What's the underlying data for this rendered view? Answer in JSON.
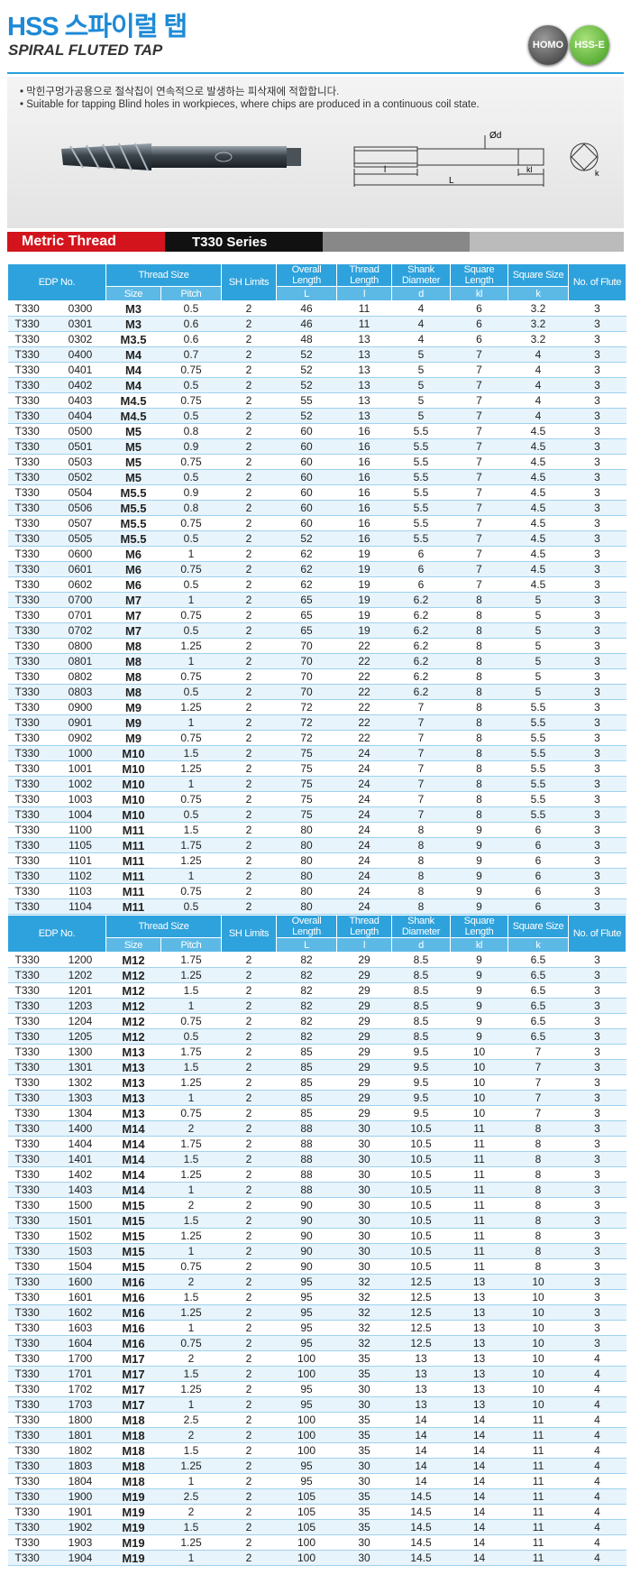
{
  "header": {
    "title": "HSS 스파이럴 탭",
    "subtitle": "SPIRAL FLUTED TAP",
    "badges": [
      "HOMO",
      "HSS-E"
    ]
  },
  "notes": [
    "• 막힌구멍가공용으로 절삭칩이 연속적으로 발생하는 피삭재에 적합합니다.",
    "• Suitable for tapping Blind holes in workpieces, where chips are produced in a continuous coil state."
  ],
  "diagram": {
    "labels": [
      "Ød",
      "l",
      "L",
      "kl",
      "k"
    ]
  },
  "series_bar": {
    "thread": "Metric Thread",
    "series": "T330 Series"
  },
  "columns": {
    "edp": "EDP No.",
    "thread_size": "Thread Size",
    "size": "Size",
    "pitch": "Pitch",
    "sh": "SH Limits",
    "overall": "Overall Length",
    "overall_sym": "L",
    "thread_length": "Thread Length",
    "thread_length_sym": "l",
    "shank": "Shank Diameter",
    "shank_sym": "d",
    "square_length": "Square Length",
    "square_length_sym": "kl",
    "square_size": "Square Size",
    "square_size_sym": "k",
    "flute": "No. of Flute"
  },
  "tables": [
    {
      "rows": [
        [
          "T330",
          "0300",
          "M3",
          "0.5",
          "2",
          "46",
          "11",
          "4",
          "6",
          "3.2",
          "3"
        ],
        [
          "T330",
          "0301",
          "M3",
          "0.6",
          "2",
          "46",
          "11",
          "4",
          "6",
          "3.2",
          "3"
        ],
        [
          "T330",
          "0302",
          "M3.5",
          "0.6",
          "2",
          "48",
          "13",
          "4",
          "6",
          "3.2",
          "3"
        ],
        [
          "T330",
          "0400",
          "M4",
          "0.7",
          "2",
          "52",
          "13",
          "5",
          "7",
          "4",
          "3"
        ],
        [
          "T330",
          "0401",
          "M4",
          "0.75",
          "2",
          "52",
          "13",
          "5",
          "7",
          "4",
          "3"
        ],
        [
          "T330",
          "0402",
          "M4",
          "0.5",
          "2",
          "52",
          "13",
          "5",
          "7",
          "4",
          "3"
        ],
        [
          "T330",
          "0403",
          "M4.5",
          "0.75",
          "2",
          "55",
          "13",
          "5",
          "7",
          "4",
          "3"
        ],
        [
          "T330",
          "0404",
          "M4.5",
          "0.5",
          "2",
          "52",
          "13",
          "5",
          "7",
          "4",
          "3"
        ],
        [
          "T330",
          "0500",
          "M5",
          "0.8",
          "2",
          "60",
          "16",
          "5.5",
          "7",
          "4.5",
          "3"
        ],
        [
          "T330",
          "0501",
          "M5",
          "0.9",
          "2",
          "60",
          "16",
          "5.5",
          "7",
          "4.5",
          "3"
        ],
        [
          "T330",
          "0503",
          "M5",
          "0.75",
          "2",
          "60",
          "16",
          "5.5",
          "7",
          "4.5",
          "3"
        ],
        [
          "T330",
          "0502",
          "M5",
          "0.5",
          "2",
          "60",
          "16",
          "5.5",
          "7",
          "4.5",
          "3"
        ],
        [
          "T330",
          "0504",
          "M5.5",
          "0.9",
          "2",
          "60",
          "16",
          "5.5",
          "7",
          "4.5",
          "3"
        ],
        [
          "T330",
          "0506",
          "M5.5",
          "0.8",
          "2",
          "60",
          "16",
          "5.5",
          "7",
          "4.5",
          "3"
        ],
        [
          "T330",
          "0507",
          "M5.5",
          "0.75",
          "2",
          "60",
          "16",
          "5.5",
          "7",
          "4.5",
          "3"
        ],
        [
          "T330",
          "0505",
          "M5.5",
          "0.5",
          "2",
          "52",
          "16",
          "5.5",
          "7",
          "4.5",
          "3"
        ],
        [
          "T330",
          "0600",
          "M6",
          "1",
          "2",
          "62",
          "19",
          "6",
          "7",
          "4.5",
          "3"
        ],
        [
          "T330",
          "0601",
          "M6",
          "0.75",
          "2",
          "62",
          "19",
          "6",
          "7",
          "4.5",
          "3"
        ],
        [
          "T330",
          "0602",
          "M6",
          "0.5",
          "2",
          "62",
          "19",
          "6",
          "7",
          "4.5",
          "3"
        ],
        [
          "T330",
          "0700",
          "M7",
          "1",
          "2",
          "65",
          "19",
          "6.2",
          "8",
          "5",
          "3"
        ],
        [
          "T330",
          "0701",
          "M7",
          "0.75",
          "2",
          "65",
          "19",
          "6.2",
          "8",
          "5",
          "3"
        ],
        [
          "T330",
          "0702",
          "M7",
          "0.5",
          "2",
          "65",
          "19",
          "6.2",
          "8",
          "5",
          "3"
        ],
        [
          "T330",
          "0800",
          "M8",
          "1.25",
          "2",
          "70",
          "22",
          "6.2",
          "8",
          "5",
          "3"
        ],
        [
          "T330",
          "0801",
          "M8",
          "1",
          "2",
          "70",
          "22",
          "6.2",
          "8",
          "5",
          "3"
        ],
        [
          "T330",
          "0802",
          "M8",
          "0.75",
          "2",
          "70",
          "22",
          "6.2",
          "8",
          "5",
          "3"
        ],
        [
          "T330",
          "0803",
          "M8",
          "0.5",
          "2",
          "70",
          "22",
          "6.2",
          "8",
          "5",
          "3"
        ],
        [
          "T330",
          "0900",
          "M9",
          "1.25",
          "2",
          "72",
          "22",
          "7",
          "8",
          "5.5",
          "3"
        ],
        [
          "T330",
          "0901",
          "M9",
          "1",
          "2",
          "72",
          "22",
          "7",
          "8",
          "5.5",
          "3"
        ],
        [
          "T330",
          "0902",
          "M9",
          "0.75",
          "2",
          "72",
          "22",
          "7",
          "8",
          "5.5",
          "3"
        ],
        [
          "T330",
          "1000",
          "M10",
          "1.5",
          "2",
          "75",
          "24",
          "7",
          "8",
          "5.5",
          "3"
        ],
        [
          "T330",
          "1001",
          "M10",
          "1.25",
          "2",
          "75",
          "24",
          "7",
          "8",
          "5.5",
          "3"
        ],
        [
          "T330",
          "1002",
          "M10",
          "1",
          "2",
          "75",
          "24",
          "7",
          "8",
          "5.5",
          "3"
        ],
        [
          "T330",
          "1003",
          "M10",
          "0.75",
          "2",
          "75",
          "24",
          "7",
          "8",
          "5.5",
          "3"
        ],
        [
          "T330",
          "1004",
          "M10",
          "0.5",
          "2",
          "75",
          "24",
          "7",
          "8",
          "5.5",
          "3"
        ],
        [
          "T330",
          "1100",
          "M11",
          "1.5",
          "2",
          "80",
          "24",
          "8",
          "9",
          "6",
          "3"
        ],
        [
          "T330",
          "1105",
          "M11",
          "1.75",
          "2",
          "80",
          "24",
          "8",
          "9",
          "6",
          "3"
        ],
        [
          "T330",
          "1101",
          "M11",
          "1.25",
          "2",
          "80",
          "24",
          "8",
          "9",
          "6",
          "3"
        ],
        [
          "T330",
          "1102",
          "M11",
          "1",
          "2",
          "80",
          "24",
          "8",
          "9",
          "6",
          "3"
        ],
        [
          "T330",
          "1103",
          "M11",
          "0.75",
          "2",
          "80",
          "24",
          "8",
          "9",
          "6",
          "3"
        ],
        [
          "T330",
          "1104",
          "M11",
          "0.5",
          "2",
          "80",
          "24",
          "8",
          "9",
          "6",
          "3"
        ]
      ]
    },
    {
      "rows": [
        [
          "T330",
          "1200",
          "M12",
          "1.75",
          "2",
          "82",
          "29",
          "8.5",
          "9",
          "6.5",
          "3"
        ],
        [
          "T330",
          "1202",
          "M12",
          "1.25",
          "2",
          "82",
          "29",
          "8.5",
          "9",
          "6.5",
          "3"
        ],
        [
          "T330",
          "1201",
          "M12",
          "1.5",
          "2",
          "82",
          "29",
          "8.5",
          "9",
          "6.5",
          "3"
        ],
        [
          "T330",
          "1203",
          "M12",
          "1",
          "2",
          "82",
          "29",
          "8.5",
          "9",
          "6.5",
          "3"
        ],
        [
          "T330",
          "1204",
          "M12",
          "0.75",
          "2",
          "82",
          "29",
          "8.5",
          "9",
          "6.5",
          "3"
        ],
        [
          "T330",
          "1205",
          "M12",
          "0.5",
          "2",
          "82",
          "29",
          "8.5",
          "9",
          "6.5",
          "3"
        ],
        [
          "T330",
          "1300",
          "M13",
          "1.75",
          "2",
          "85",
          "29",
          "9.5",
          "10",
          "7",
          "3"
        ],
        [
          "T330",
          "1301",
          "M13",
          "1.5",
          "2",
          "85",
          "29",
          "9.5",
          "10",
          "7",
          "3"
        ],
        [
          "T330",
          "1302",
          "M13",
          "1.25",
          "2",
          "85",
          "29",
          "9.5",
          "10",
          "7",
          "3"
        ],
        [
          "T330",
          "1303",
          "M13",
          "1",
          "2",
          "85",
          "29",
          "9.5",
          "10",
          "7",
          "3"
        ],
        [
          "T330",
          "1304",
          "M13",
          "0.75",
          "2",
          "85",
          "29",
          "9.5",
          "10",
          "7",
          "3"
        ],
        [
          "T330",
          "1400",
          "M14",
          "2",
          "2",
          "88",
          "30",
          "10.5",
          "11",
          "8",
          "3"
        ],
        [
          "T330",
          "1404",
          "M14",
          "1.75",
          "2",
          "88",
          "30",
          "10.5",
          "11",
          "8",
          "3"
        ],
        [
          "T330",
          "1401",
          "M14",
          "1.5",
          "2",
          "88",
          "30",
          "10.5",
          "11",
          "8",
          "3"
        ],
        [
          "T330",
          "1402",
          "M14",
          "1.25",
          "2",
          "88",
          "30",
          "10.5",
          "11",
          "8",
          "3"
        ],
        [
          "T330",
          "1403",
          "M14",
          "1",
          "2",
          "88",
          "30",
          "10.5",
          "11",
          "8",
          "3"
        ],
        [
          "T330",
          "1500",
          "M15",
          "2",
          "2",
          "90",
          "30",
          "10.5",
          "11",
          "8",
          "3"
        ],
        [
          "T330",
          "1501",
          "M15",
          "1.5",
          "2",
          "90",
          "30",
          "10.5",
          "11",
          "8",
          "3"
        ],
        [
          "T330",
          "1502",
          "M15",
          "1.25",
          "2",
          "90",
          "30",
          "10.5",
          "11",
          "8",
          "3"
        ],
        [
          "T330",
          "1503",
          "M15",
          "1",
          "2",
          "90",
          "30",
          "10.5",
          "11",
          "8",
          "3"
        ],
        [
          "T330",
          "1504",
          "M15",
          "0.75",
          "2",
          "90",
          "30",
          "10.5",
          "11",
          "8",
          "3"
        ],
        [
          "T330",
          "1600",
          "M16",
          "2",
          "2",
          "95",
          "32",
          "12.5",
          "13",
          "10",
          "3"
        ],
        [
          "T330",
          "1601",
          "M16",
          "1.5",
          "2",
          "95",
          "32",
          "12.5",
          "13",
          "10",
          "3"
        ],
        [
          "T330",
          "1602",
          "M16",
          "1.25",
          "2",
          "95",
          "32",
          "12.5",
          "13",
          "10",
          "3"
        ],
        [
          "T330",
          "1603",
          "M16",
          "1",
          "2",
          "95",
          "32",
          "12.5",
          "13",
          "10",
          "3"
        ],
        [
          "T330",
          "1604",
          "M16",
          "0.75",
          "2",
          "95",
          "32",
          "12.5",
          "13",
          "10",
          "3"
        ],
        [
          "T330",
          "1700",
          "M17",
          "2",
          "2",
          "100",
          "35",
          "13",
          "13",
          "10",
          "4"
        ],
        [
          "T330",
          "1701",
          "M17",
          "1.5",
          "2",
          "100",
          "35",
          "13",
          "13",
          "10",
          "4"
        ],
        [
          "T330",
          "1702",
          "M17",
          "1.25",
          "2",
          "95",
          "30",
          "13",
          "13",
          "10",
          "4"
        ],
        [
          "T330",
          "1703",
          "M17",
          "1",
          "2",
          "95",
          "30",
          "13",
          "13",
          "10",
          "4"
        ],
        [
          "T330",
          "1800",
          "M18",
          "2.5",
          "2",
          "100",
          "35",
          "14",
          "14",
          "11",
          "4"
        ],
        [
          "T330",
          "1801",
          "M18",
          "2",
          "2",
          "100",
          "35",
          "14",
          "14",
          "11",
          "4"
        ],
        [
          "T330",
          "1802",
          "M18",
          "1.5",
          "2",
          "100",
          "35",
          "14",
          "14",
          "11",
          "4"
        ],
        [
          "T330",
          "1803",
          "M18",
          "1.25",
          "2",
          "95",
          "30",
          "14",
          "14",
          "11",
          "4"
        ],
        [
          "T330",
          "1804",
          "M18",
          "1",
          "2",
          "95",
          "30",
          "14",
          "14",
          "11",
          "4"
        ],
        [
          "T330",
          "1900",
          "M19",
          "2.5",
          "2",
          "105",
          "35",
          "14.5",
          "14",
          "11",
          "4"
        ],
        [
          "T330",
          "1901",
          "M19",
          "2",
          "2",
          "105",
          "35",
          "14.5",
          "14",
          "11",
          "4"
        ],
        [
          "T330",
          "1902",
          "M19",
          "1.5",
          "2",
          "105",
          "35",
          "14.5",
          "14",
          "11",
          "4"
        ],
        [
          "T330",
          "1903",
          "M19",
          "1.25",
          "2",
          "100",
          "30",
          "14.5",
          "14",
          "11",
          "4"
        ],
        [
          "T330",
          "1904",
          "M19",
          "1",
          "2",
          "100",
          "30",
          "14.5",
          "14",
          "11",
          "4"
        ]
      ]
    }
  ]
}
